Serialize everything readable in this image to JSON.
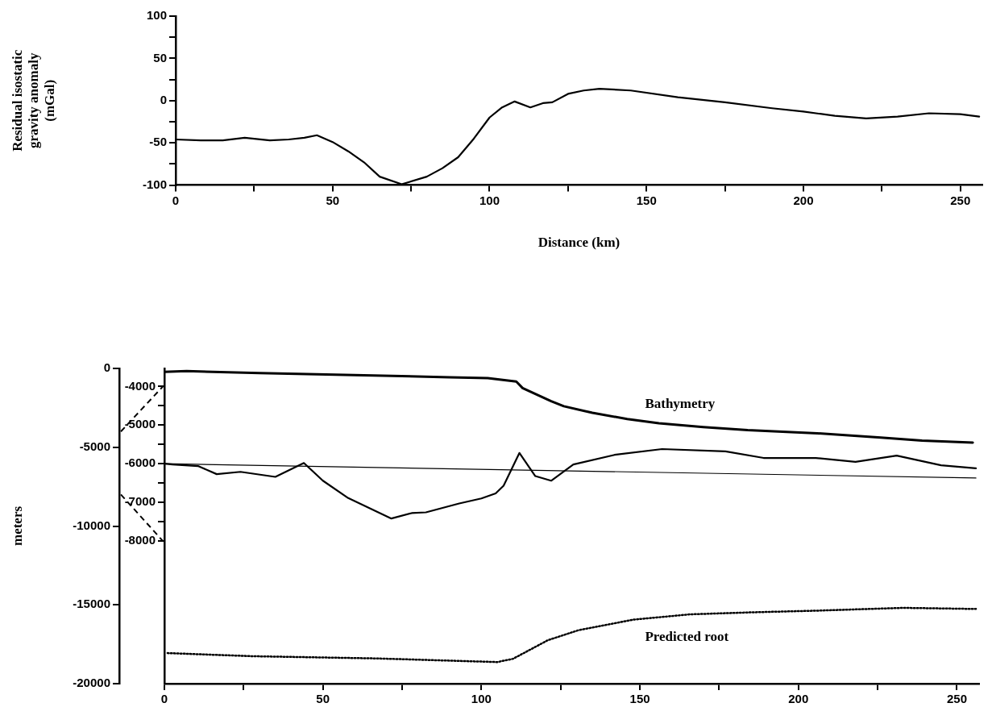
{
  "chart_data": [
    {
      "type": "line",
      "xlabel": "Distance (km)",
      "ylabel": "Residual isostatic gravity anomaly (mGal)",
      "xlim": [
        0,
        257
      ],
      "xticks": [
        0,
        {
          "value": 25,
          "label": null
        },
        50,
        {
          "value": 75,
          "label": null
        },
        100,
        {
          "value": 125,
          "label": null
        },
        150,
        {
          "value": 175,
          "label": null
        },
        200,
        {
          "value": 225,
          "label": null
        },
        250
      ],
      "ylim": [
        -100,
        100
      ],
      "yticks": [
        -100,
        {
          "value": -75,
          "label": null
        },
        -50,
        {
          "value": -25,
          "label": null
        },
        0,
        {
          "value": 25,
          "label": null
        },
        50,
        {
          "value": 75,
          "label": null
        },
        100
      ],
      "series": [
        {
          "color": "#000000",
          "x": [
            0,
            8,
            15,
            22,
            30,
            36,
            41,
            45,
            50,
            55,
            60,
            65,
            72,
            80,
            85,
            90,
            95,
            100,
            104,
            108,
            113,
            117,
            120,
            125,
            130,
            135,
            145,
            160,
            175,
            190,
            200,
            210,
            220,
            230,
            240,
            250,
            256
          ],
          "values": [
            -46,
            -47,
            -47,
            -44,
            -47,
            -46,
            -44,
            -41,
            -49,
            -60,
            -73,
            -90,
            -99,
            -90,
            -80,
            -67,
            -45,
            -20,
            -8,
            -1,
            -8,
            -3,
            -2,
            8,
            12,
            14,
            12,
            4,
            -2,
            -9,
            -13,
            -18,
            -21,
            -19,
            -15,
            -16,
            -19
          ]
        }
      ]
    },
    {
      "type": "line",
      "ylabel": "meters",
      "xlim": [
        0,
        257
      ],
      "xticks": [
        0,
        {
          "value": 25,
          "label": null
        },
        50,
        {
          "value": 75,
          "label": null
        },
        100,
        {
          "value": 125,
          "label": null
        },
        150,
        {
          "value": 175,
          "label": null
        },
        200,
        {
          "value": 225,
          "label": null
        },
        250
      ],
      "ylim": [
        -20000,
        0
      ],
      "yticks": [
        -20000,
        -15000,
        -10000,
        -5000,
        0
      ],
      "y2lim": [
        -11700,
        -3530
      ],
      "y2ticks": [
        -8000,
        {
          "value": -7500,
          "label": null
        },
        -7000,
        {
          "value": -6500,
          "label": null
        },
        -6000,
        {
          "value": -5500,
          "label": null
        },
        -5000,
        {
          "value": -4500,
          "label": null
        },
        -4000
      ],
      "series": [
        {
          "name": "Bathymetry",
          "color": "#000000",
          "axis": "y2",
          "x": [
            0,
            7,
            30,
            60,
            90,
            102,
            111,
            113,
            122,
            126,
            135,
            146,
            156,
            170,
            184,
            206,
            226,
            239,
            255
          ],
          "values": [
            -3620,
            -3600,
            -3650,
            -3700,
            -3760,
            -3780,
            -3870,
            -4040,
            -4380,
            -4510,
            -4680,
            -4840,
            -4950,
            -5050,
            -5130,
            -5210,
            -5320,
            -5400,
            -5450
          ]
        },
        {
          "color": "#000000",
          "axis": "y2",
          "x": [
            0,
            2.6,
            10.6,
            16.5,
            24,
            35,
            44,
            50,
            58,
            71.6,
            78,
            82.5,
            93,
            100,
            104.5,
            107,
            112,
            117,
            122,
            129,
            142,
            157,
            177,
            189,
            205.5,
            218,
            231,
            245,
            256
          ],
          "values": [
            -6000,
            -6020,
            -6060,
            -6270,
            -6210,
            -6340,
            -5980,
            -6440,
            -6890,
            -7420,
            -7280,
            -7260,
            -7030,
            -6900,
            -6770,
            -6570,
            -5720,
            -6320,
            -6440,
            -6020,
            -5770,
            -5620,
            -5680,
            -5850,
            -5850,
            -5950,
            -5790,
            -6040,
            -6120
          ]
        },
        {
          "color": "#000000",
          "axis": "y2",
          "x": [
            0,
            256
          ],
          "values": [
            -6000,
            -6370
          ]
        },
        {
          "name": "Predicted root",
          "color": "#000000",
          "line_style": "dotted",
          "x": [
            1,
            28,
            67,
            105,
            110,
            121,
            130.6,
            148,
            166,
            186,
            205.5,
            233,
            256
          ],
          "values": [
            -18060,
            -18260,
            -18400,
            -18630,
            -18420,
            -17240,
            -16610,
            -15940,
            -15600,
            -15470,
            -15370,
            -15190,
            -15260
          ]
        }
      ]
    }
  ]
}
